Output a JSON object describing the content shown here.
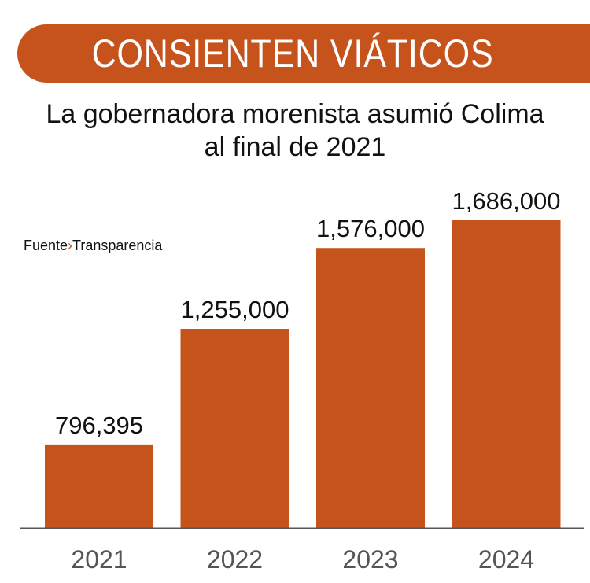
{
  "header": {
    "title": "CONSIENTEN VIÁTICOS",
    "subtitle_line1": "La gobernadora morenista asumió Colima",
    "subtitle_line2": "al final de 2021"
  },
  "source": {
    "label": "Fuente",
    "separator": "›",
    "value": "Transparencia"
  },
  "colors": {
    "bar": "#C6531B",
    "axis": "#555555"
  },
  "chart_data": {
    "type": "bar",
    "categories": [
      "2021",
      "2022",
      "2023",
      "2024"
    ],
    "values": [
      796395,
      1255000,
      1576000,
      1686000
    ],
    "data_labels": [
      "796,395",
      "1,255,000",
      "1,576,000",
      "1,686,000"
    ],
    "title": "CONSIENTEN VIÁTICOS",
    "subtitle": "La gobernadora morenista asumió Colima al final de 2021",
    "xlabel": "",
    "ylabel": "",
    "ylim": [
      465000,
      1686000
    ],
    "grid": false
  }
}
